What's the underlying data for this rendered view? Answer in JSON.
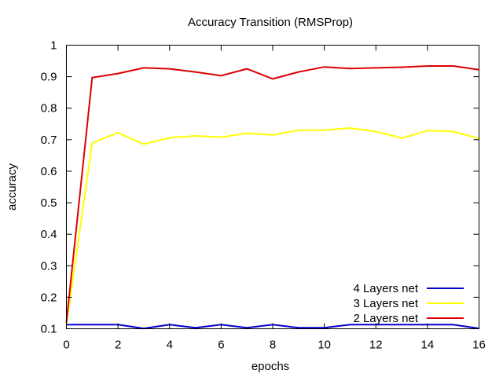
{
  "chart_data": {
    "type": "line",
    "title": "Accuracy Transition (RMSProp)",
    "xlabel": "epochs",
    "ylabel": "accuracy",
    "xlim": [
      0,
      16
    ],
    "ylim": [
      0.1,
      1.0
    ],
    "x_ticks": [
      "0",
      "2",
      "4",
      "6",
      "8",
      "10",
      "12",
      "14",
      "16"
    ],
    "y_ticks": [
      "0.1",
      "0.2",
      "0.3",
      "0.4",
      "0.5",
      "0.6",
      "0.7",
      "0.8",
      "0.9",
      "1"
    ],
    "grid": false,
    "legend_position": "bottom-right",
    "x": [
      0,
      1,
      2,
      3,
      4,
      5,
      6,
      7,
      8,
      9,
      10,
      11,
      12,
      13,
      14,
      15,
      16
    ],
    "series": [
      {
        "name": "4 Layers net",
        "color": "#0000cc",
        "values": [
          0.113,
          0.113,
          0.113,
          0.101,
          0.113,
          0.103,
          0.113,
          0.103,
          0.113,
          0.103,
          0.103,
          0.113,
          0.113,
          0.113,
          0.113,
          0.113,
          0.101
        ]
      },
      {
        "name": "3 Layers net",
        "color": "#ffff00",
        "values": [
          0.115,
          0.69,
          0.722,
          0.686,
          0.706,
          0.712,
          0.708,
          0.72,
          0.715,
          0.73,
          0.73,
          0.737,
          0.726,
          0.705,
          0.729,
          0.726,
          0.704
        ]
      },
      {
        "name": "2 Layers net",
        "color": "#dd0000",
        "values": [
          0.12,
          0.897,
          0.91,
          0.928,
          0.925,
          0.915,
          0.903,
          0.925,
          0.893,
          0.915,
          0.931,
          0.926,
          0.928,
          0.93,
          0.934,
          0.934,
          0.922
        ]
      }
    ]
  }
}
